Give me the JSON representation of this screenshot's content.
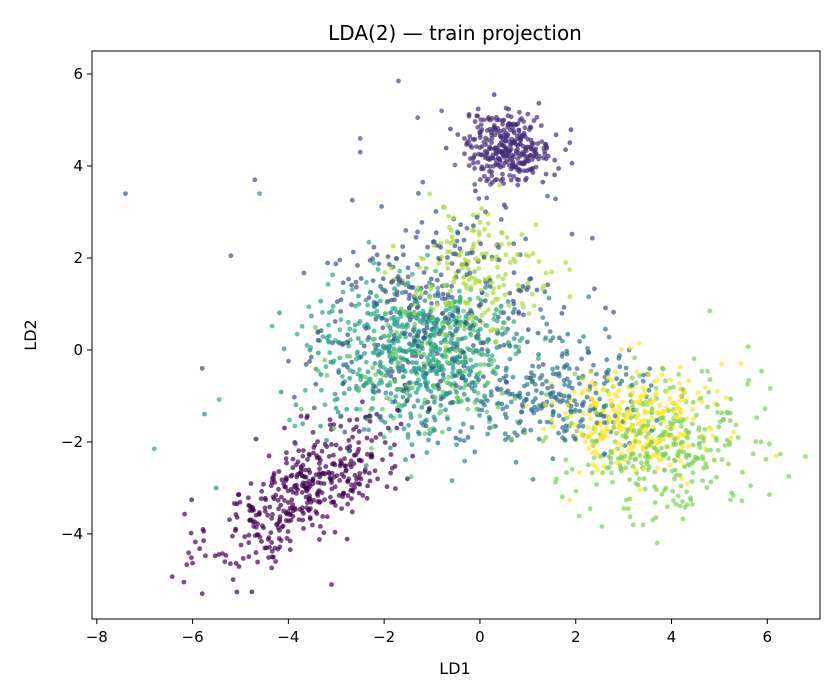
{
  "chart_data": {
    "type": "scatter",
    "title": "LDA(2) — train projection",
    "xlabel": "LD1",
    "ylabel": "LD2",
    "xlim": [
      -8.1,
      7.1
    ],
    "ylim": [
      -5.85,
      6.5
    ],
    "xticks": [
      -8,
      -6,
      -4,
      -2,
      0,
      2,
      4,
      6
    ],
    "yticks": [
      -4,
      -2,
      0,
      2,
      4,
      6
    ],
    "xtick_labels": [
      "−8",
      "−6",
      "−4",
      "−2",
      "0",
      "2",
      "4",
      "6"
    ],
    "ytick_labels": [
      "−4",
      "−2",
      "0",
      "2",
      "4",
      "6"
    ],
    "grid": false,
    "legend": false,
    "colormap": "viridis",
    "marker_alpha": 0.7,
    "clusters": [
      {
        "color": "#440154",
        "center": [
          -3.6,
          -3.0
        ],
        "spread": [
          1.0,
          0.85
        ],
        "rho": 0.7,
        "count": 420
      },
      {
        "color": "#472c7a",
        "center": [
          0.6,
          4.4
        ],
        "spread": [
          0.45,
          0.38
        ],
        "rho": 0.0,
        "count": 330
      },
      {
        "color": "#3b528b",
        "center": [
          -1.0,
          0.9
        ],
        "spread": [
          1.3,
          1.1
        ],
        "rho": 0.2,
        "count": 330
      },
      {
        "color": "#2c728e",
        "center": [
          1.6,
          -1.0
        ],
        "spread": [
          1.0,
          0.6
        ],
        "rho": 0.0,
        "count": 260
      },
      {
        "color": "#21908d",
        "center": [
          -1.2,
          -0.3
        ],
        "spread": [
          1.1,
          0.85
        ],
        "rho": 0.1,
        "count": 340
      },
      {
        "color": "#27ad81",
        "center": [
          -1.6,
          0.1
        ],
        "spread": [
          1.2,
          0.9
        ],
        "rho": 0.1,
        "count": 260
      },
      {
        "color": "#5dc963",
        "center": [
          -1.0,
          -0.3
        ],
        "spread": [
          0.9,
          0.75
        ],
        "rho": 0.1,
        "count": 200
      },
      {
        "color": "#aadc32",
        "center": [
          0.0,
          1.6
        ],
        "spread": [
          0.8,
          0.7
        ],
        "rho": 0.0,
        "count": 170
      },
      {
        "color": "#7ad151",
        "center": [
          3.8,
          -2.0
        ],
        "spread": [
          0.95,
          0.75
        ],
        "rho": 0.0,
        "count": 330
      },
      {
        "color": "#fde725",
        "center": [
          3.2,
          -1.5
        ],
        "spread": [
          0.8,
          0.6
        ],
        "rho": 0.0,
        "count": 290
      }
    ],
    "outliers": [
      {
        "x": -7.4,
        "y": 3.4,
        "color": "#3b528b"
      },
      {
        "x": -1.7,
        "y": 5.85,
        "color": "#3b528b"
      },
      {
        "x": -4.7,
        "y": 3.7,
        "color": "#3b528b"
      },
      {
        "x": -4.6,
        "y": 3.4,
        "color": "#21908d"
      },
      {
        "x": -5.2,
        "y": 2.05,
        "color": "#3b528b"
      },
      {
        "x": -6.8,
        "y": -2.15,
        "color": "#27ad81"
      },
      {
        "x": -5.8,
        "y": -0.4,
        "color": "#3b528b"
      },
      {
        "x": 6.45,
        "y": -2.75,
        "color": "#7ad151"
      },
      {
        "x": 4.8,
        "y": 0.85,
        "color": "#7ad151"
      },
      {
        "x": 5.45,
        "y": -0.3,
        "color": "#fde725"
      },
      {
        "x": -3.1,
        "y": -5.1,
        "color": "#440154"
      },
      {
        "x": -5.8,
        "y": -5.3,
        "color": "#440154"
      },
      {
        "x": -0.8,
        "y": 5.2,
        "color": "#3b528b"
      },
      {
        "x": -2.5,
        "y": 4.3,
        "color": "#3b528b"
      },
      {
        "x": 3.7,
        "y": -4.2,
        "color": "#7ad151"
      },
      {
        "x": 3.2,
        "y": -3.8,
        "color": "#7ad151"
      },
      {
        "x": -2.5,
        "y": 4.6,
        "color": "#3b528b"
      },
      {
        "x": -1.3,
        "y": 5.05,
        "color": "#3b528b"
      }
    ]
  }
}
